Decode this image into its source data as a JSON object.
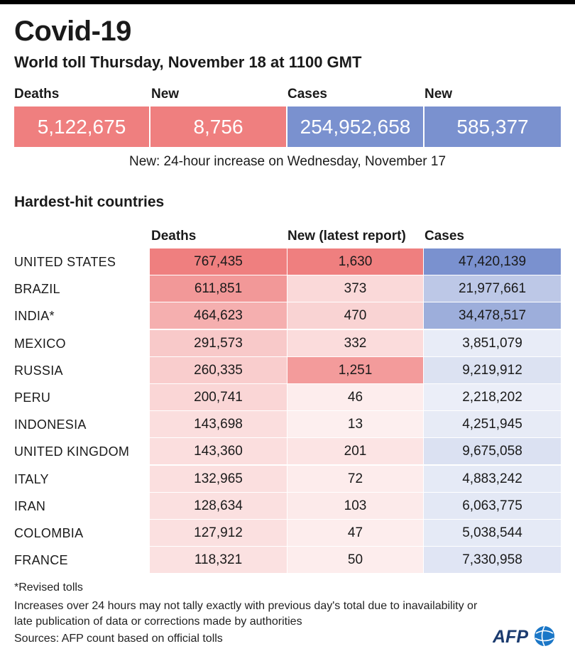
{
  "title": "Covid-19",
  "subtitle": "World toll Thursday, November 18 at 1100 GMT",
  "summary": {
    "deaths_label": "Deaths",
    "deaths_value": "5,122,675",
    "deaths_new_label": "New",
    "deaths_new_value": "8,756",
    "cases_label": "Cases",
    "cases_value": "254,952,658",
    "cases_new_label": "New",
    "cases_new_value": "585,377"
  },
  "note": "New: 24-hour increase on Wednesday, November 17",
  "section_title": "Hardest-hit countries",
  "columns": {
    "deaths": "Deaths",
    "new": "New (latest report)",
    "cases": "Cases"
  },
  "colors": {
    "deaths_accent": "#ef7f7f",
    "cases_accent": "#7a91cf",
    "text": "#1a1a1a"
  },
  "chart_data": {
    "type": "table",
    "columns": [
      "Deaths",
      "New (latest report)",
      "Cases"
    ],
    "rows": [
      {
        "country": "UNITED STATES",
        "deaths": "767,435",
        "new": "1,630",
        "cases": "47,420,139"
      },
      {
        "country": "BRAZIL",
        "deaths": "611,851",
        "new": "373",
        "cases": "21,977,661"
      },
      {
        "country": "INDIA*",
        "deaths": "464,623",
        "new": "470",
        "cases": "34,478,517"
      },
      {
        "country": "MEXICO",
        "deaths": "291,573",
        "new": "332",
        "cases": "3,851,079"
      },
      {
        "country": "RUSSIA",
        "deaths": "260,335",
        "new": "1,251",
        "cases": "9,219,912"
      },
      {
        "country": "PERU",
        "deaths": "200,741",
        "new": "46",
        "cases": "2,218,202"
      },
      {
        "country": "INDONESIA",
        "deaths": "143,698",
        "new": "13",
        "cases": "4,251,945"
      },
      {
        "country": "UNITED KINGDOM",
        "deaths": "143,360",
        "new": "201",
        "cases": "9,675,058"
      },
      {
        "country": "ITALY",
        "deaths": "132,965",
        "new": "72",
        "cases": "4,883,242"
      },
      {
        "country": "IRAN",
        "deaths": "128,634",
        "new": "103",
        "cases": "6,063,775"
      },
      {
        "country": "COLOMBIA",
        "deaths": "127,912",
        "new": "47",
        "cases": "5,038,544"
      },
      {
        "country": "FRANCE",
        "deaths": "118,321",
        "new": "50",
        "cases": "7,330,958"
      }
    ]
  },
  "footnotes": {
    "revised": "*Revised tolls",
    "increases": "Increases over 24 hours may not tally exactly with previous day's total due to inavailability or late publication of data or corrections made by authorities",
    "sources": "Sources: AFP count based on official tolls"
  },
  "logo_text": "AFP"
}
